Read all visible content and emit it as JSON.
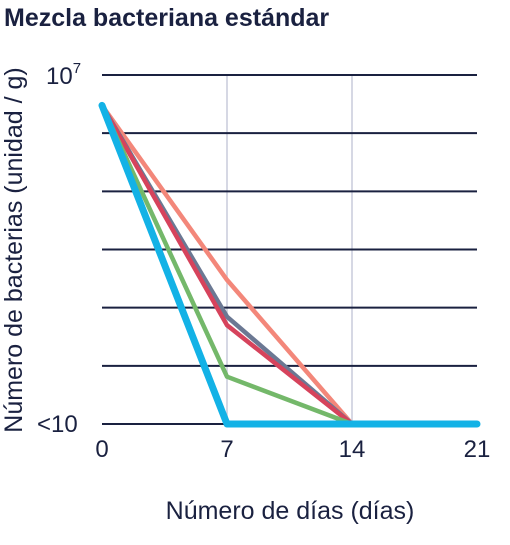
{
  "chart_data": {
    "type": "line",
    "title": "Mezcla bacteriana estándar",
    "xlabel": "Número de días (días)",
    "ylabel": "Número de bacterias (unidad / g)",
    "x": [
      0,
      7,
      14,
      21
    ],
    "x_tick_labels": [
      "0",
      "7",
      "14",
      "21"
    ],
    "y_scale": "log",
    "ylim": [
      10,
      10000000
    ],
    "y_tick_labels": {
      "top": {
        "base": "10",
        "exponent": "7"
      },
      "bottom": "<10"
    },
    "y_gridlines": [
      10000000,
      1000000,
      100000,
      10000,
      1000,
      100,
      10
    ],
    "x_gridlines": [
      7,
      14
    ],
    "series": [
      {
        "color": "#f3877a",
        "values": [
          3000000,
          3000,
          10,
          null
        ]
      },
      {
        "color": "#6b7893",
        "values": [
          3000000,
          700,
          10,
          null
        ]
      },
      {
        "color": "#d6435c",
        "values": [
          3000000,
          500,
          10,
          null
        ]
      },
      {
        "color": "#74b86a",
        "values": [
          3000000,
          65,
          10,
          null
        ]
      },
      {
        "color": "#13b2e6",
        "values": [
          3000000,
          10,
          10,
          10
        ]
      }
    ],
    "grid_color_horizontal": "#1a2140",
    "grid_color_vertical": "#c9ccdb"
  }
}
